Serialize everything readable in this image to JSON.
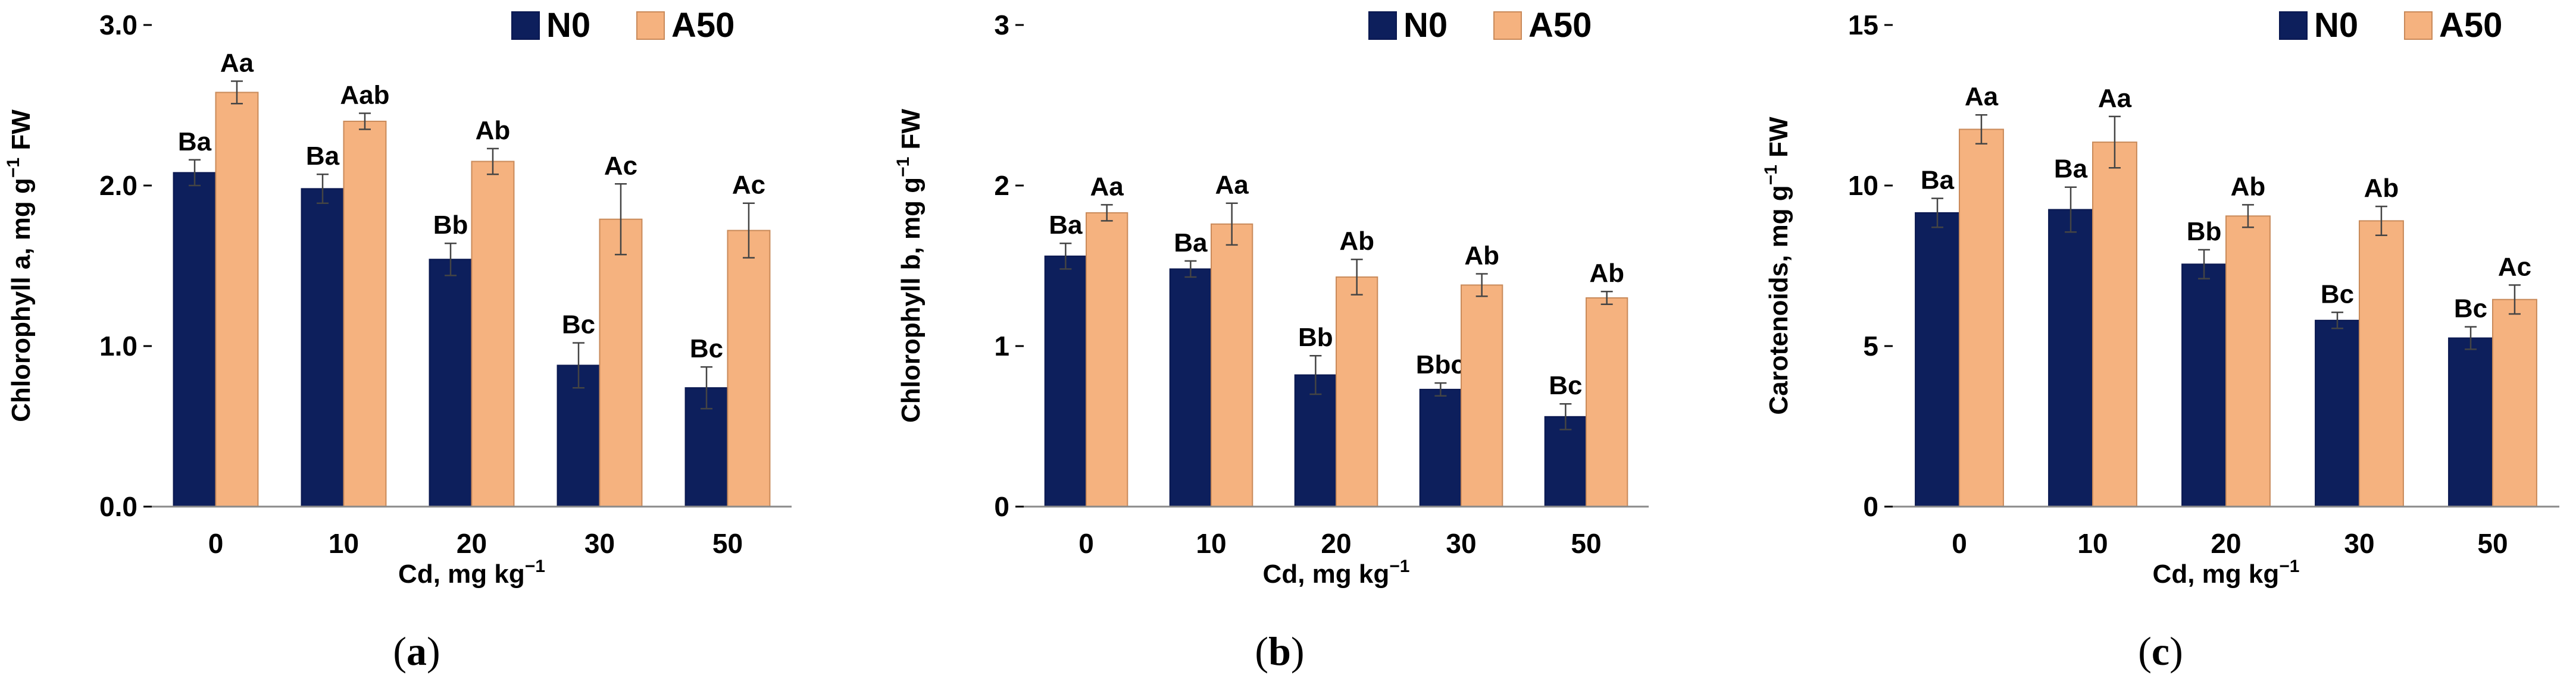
{
  "chart_data": [
    {
      "type": "bar",
      "panel_label": "a",
      "ylabel_main": "Chlorophyll a, mg g",
      "ylabel_sup": "−1",
      "ylabel_tail": " FW",
      "xlabel_main": "Cd, mg kg",
      "xlabel_sup": "−1",
      "categories": [
        "0",
        "10",
        "20",
        "30",
        "50"
      ],
      "ylim": [
        0,
        3.0
      ],
      "yticks": [
        0,
        1.0,
        2.0,
        3.0
      ],
      "ytick_labels": [
        "0.0",
        "1.0",
        "2.0",
        "3.0"
      ],
      "grid": false,
      "legend_position": "top-right",
      "series": [
        {
          "name": "N0",
          "color": "#0d1f5c",
          "values": [
            2.08,
            1.98,
            1.54,
            0.88,
            0.74
          ],
          "errors": [
            0.08,
            0.09,
            0.1,
            0.14,
            0.13
          ],
          "labels": [
            "Ba",
            "Ba",
            "Bb",
            "Bc",
            "Bc"
          ]
        },
        {
          "name": "A50",
          "color": "#f5b27f",
          "values": [
            2.58,
            2.4,
            2.15,
            1.79,
            1.72
          ],
          "errors": [
            0.07,
            0.05,
            0.08,
            0.22,
            0.17
          ],
          "labels": [
            "Aa",
            "Aab",
            "Ab",
            "Ac",
            "Ac"
          ]
        }
      ]
    },
    {
      "type": "bar",
      "panel_label": "b",
      "ylabel_main": "Chlorophyll b, mg g",
      "ylabel_sup": "−1",
      "ylabel_tail": " FW",
      "xlabel_main": "Cd, mg kg",
      "xlabel_sup": "−1",
      "categories": [
        "0",
        "10",
        "20",
        "30",
        "50"
      ],
      "ylim": [
        0,
        3
      ],
      "yticks": [
        0,
        1,
        2,
        3
      ],
      "ytick_labels": [
        "0",
        "1",
        "2",
        "3"
      ],
      "grid": false,
      "legend_position": "top-right",
      "series": [
        {
          "name": "N0",
          "color": "#0d1f5c",
          "values": [
            1.56,
            1.48,
            0.82,
            0.73,
            0.56
          ],
          "errors": [
            0.08,
            0.05,
            0.12,
            0.04,
            0.08
          ],
          "labels": [
            "Ba",
            "Ba",
            "Bb",
            "Bbc",
            "Bc"
          ]
        },
        {
          "name": "A50",
          "color": "#f5b27f",
          "values": [
            1.83,
            1.76,
            1.43,
            1.38,
            1.3
          ],
          "errors": [
            0.05,
            0.13,
            0.11,
            0.07,
            0.04
          ],
          "labels": [
            "Aa",
            "Aa",
            "Ab",
            "Ab",
            "Ab"
          ]
        }
      ]
    },
    {
      "type": "bar",
      "panel_label": "c",
      "ylabel_main": "Carotenoids, mg g",
      "ylabel_sup": "−1",
      "ylabel_tail": " FW",
      "xlabel_main": "Cd, mg kg",
      "xlabel_sup": "−1",
      "categories": [
        "0",
        "10",
        "20",
        "30",
        "50"
      ],
      "ylim": [
        0,
        15
      ],
      "yticks": [
        0,
        5,
        10,
        15
      ],
      "ytick_labels": [
        "0",
        "5",
        "10",
        "15"
      ],
      "grid": false,
      "legend_position": "top-right",
      "series": [
        {
          "name": "N0",
          "color": "#0d1f5c",
          "values": [
            9.15,
            9.25,
            7.55,
            5.8,
            5.25
          ],
          "errors": [
            0.45,
            0.7,
            0.45,
            0.25,
            0.35
          ],
          "labels": [
            "Ba",
            "Ba",
            "Bb",
            "Bc",
            "Bc"
          ]
        },
        {
          "name": "A50",
          "color": "#f5b27f",
          "values": [
            11.75,
            11.35,
            9.05,
            8.9,
            6.45
          ],
          "errors": [
            0.45,
            0.8,
            0.35,
            0.45,
            0.45
          ],
          "labels": [
            "Aa",
            "Aa",
            "Ab",
            "Ab",
            "Ac"
          ]
        }
      ]
    }
  ]
}
